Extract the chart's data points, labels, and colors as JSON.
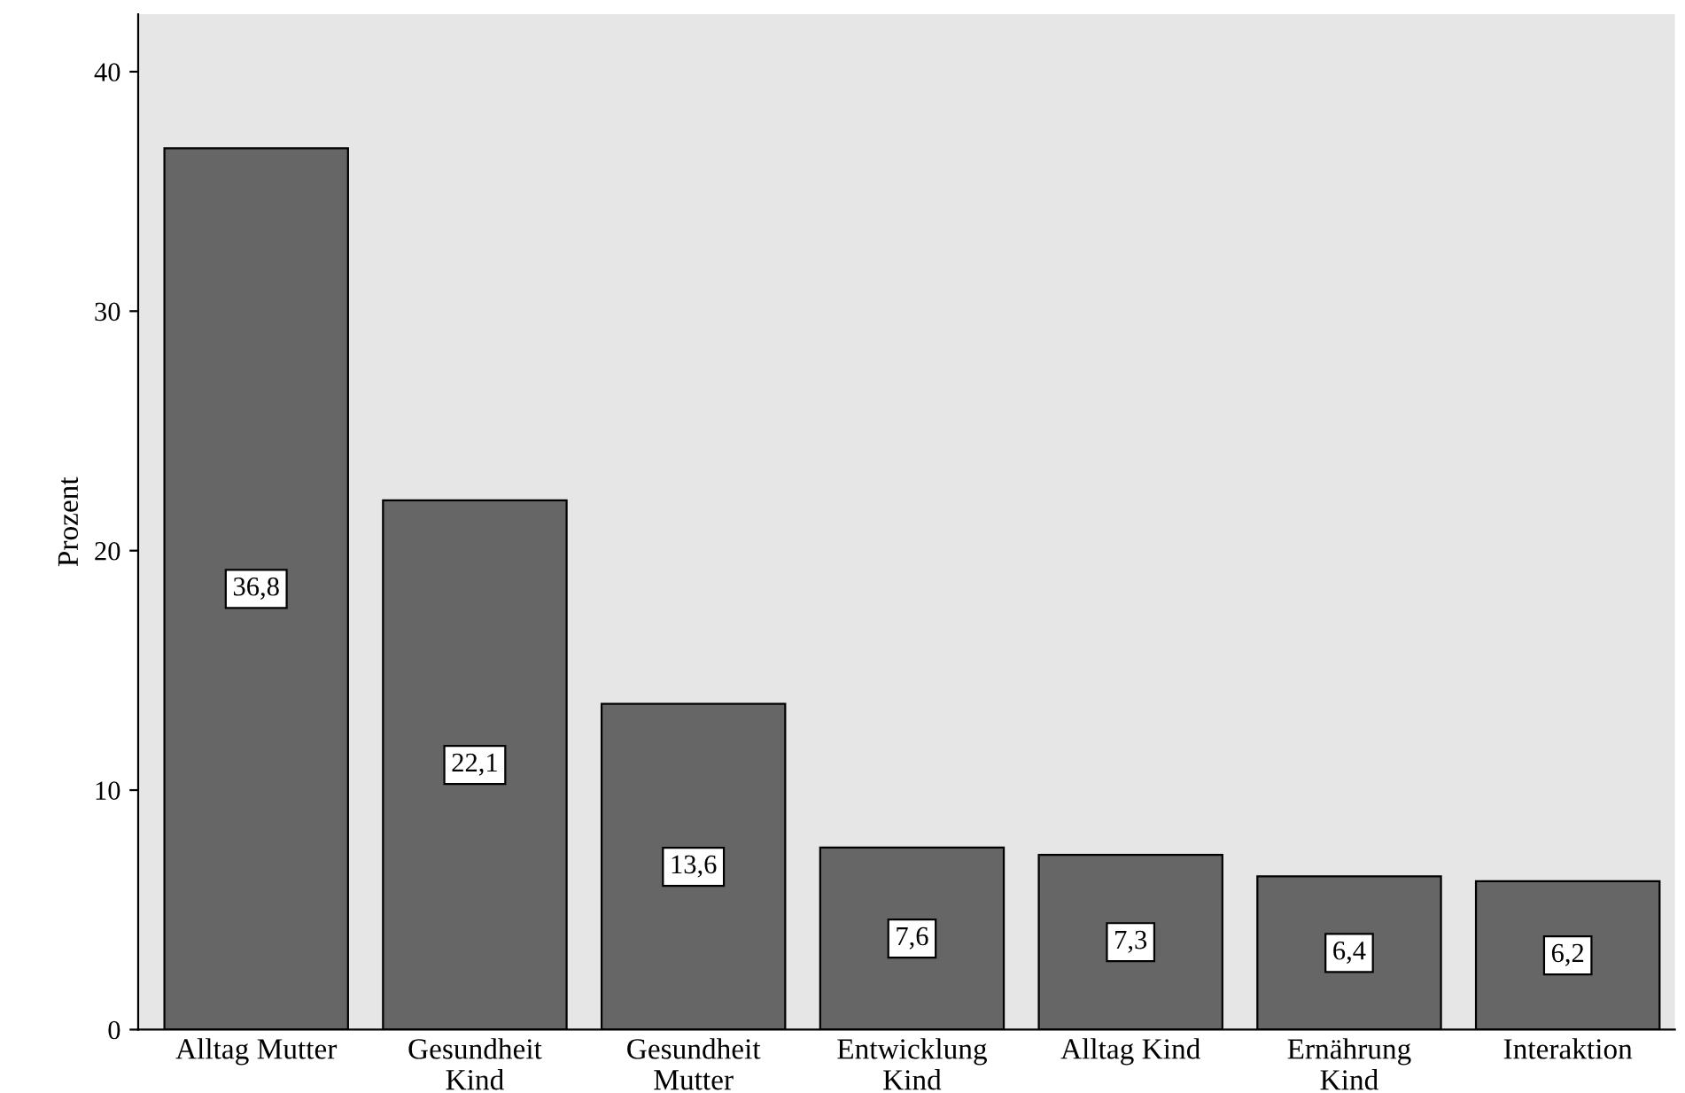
{
  "chart_data": {
    "type": "bar",
    "ylabel": "Prozent",
    "categories": [
      "Alltag Mutter",
      "Gesundheit\nKind",
      "Gesundheit\nMutter",
      "Entwicklung\nKind",
      "Alltag Kind",
      "Ernährung\nKind",
      "Interaktion"
    ],
    "values": [
      36.8,
      22.1,
      13.6,
      7.6,
      7.3,
      6.4,
      6.2
    ],
    "value_labels": [
      "36,8",
      "22,1",
      "13,6",
      "7,6",
      "7,3",
      "6,4",
      "6,2"
    ],
    "color": "#666666",
    "ylim": [
      0,
      42.4
    ],
    "yticks": [
      0,
      10,
      20,
      30,
      40
    ],
    "grid": false
  }
}
